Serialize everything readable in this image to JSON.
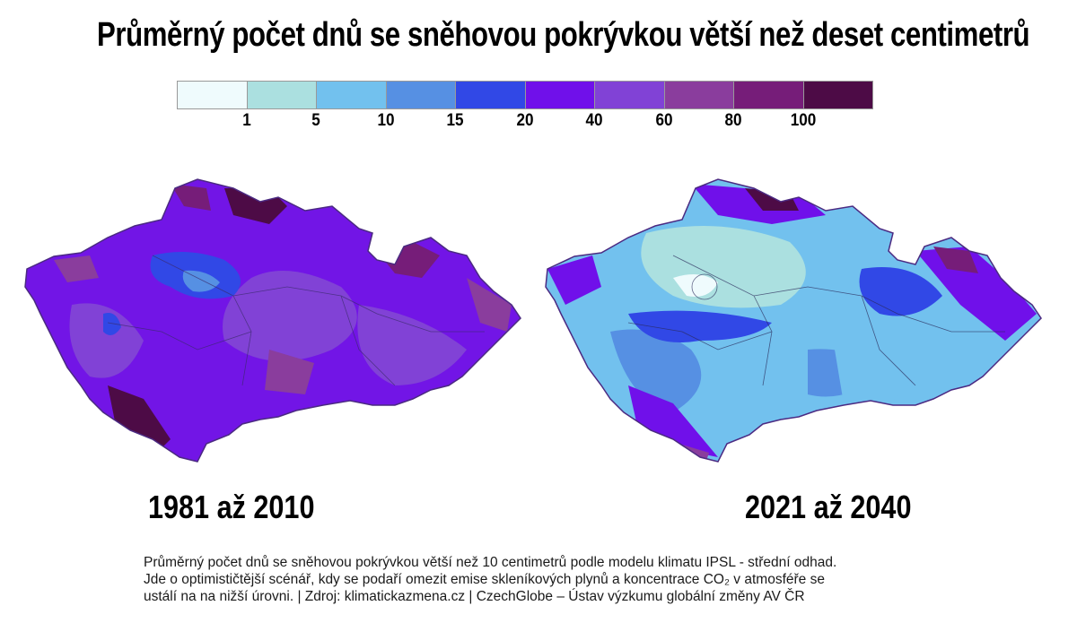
{
  "title": "Průměrný počet dnů se sněhovou pokrývkou větší než deset centimetrů",
  "legend": {
    "colors": [
      "#effbfd",
      "#abe0e0",
      "#72c1ee",
      "#5690e3",
      "#3148e6",
      "#7010ea",
      "#8142d6",
      "#8a3d9d",
      "#761d79",
      "#4d0b46"
    ],
    "labels": [
      "1",
      "5",
      "10",
      "15",
      "20",
      "40",
      "60",
      "80",
      "100"
    ]
  },
  "maps": [
    {
      "period": "1981 až 2010"
    },
    {
      "period": "2021 až 2040"
    }
  ],
  "caption": {
    "line1": "Průměrný počet dnů se sněhovou pokrývkou větší než 10 centimetrů podle modelu klimatu IPSL - střední odhad.",
    "line2": "Jde o optimističtější scénář, kdy se podaří omezit emise skleníkových plynů a koncentrace CO₂ v atmosféře se",
    "line3": "ustálí na na nižší úrovni. | Zdroj: klimatickazmena.cz | CzechGlobe – Ústav výzkumu globální změny AV ČR"
  }
}
